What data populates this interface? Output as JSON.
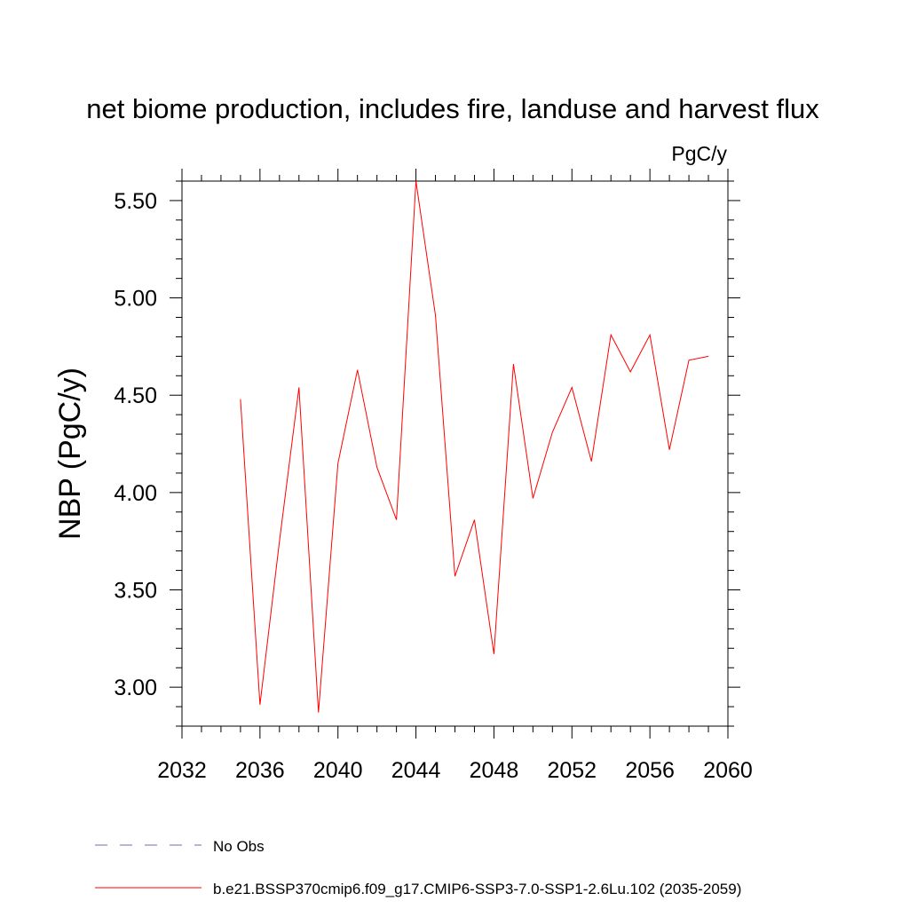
{
  "chart_data": {
    "type": "line",
    "title": "net biome production, includes fire, landuse and harvest flux",
    "units": "PgC/y",
    "ylabel": "NBP  (PgC/y)",
    "xlabel": "",
    "xlim": [
      2032,
      2060
    ],
    "ylim": [
      2.8,
      5.6
    ],
    "x_ticks": [
      2032,
      2036,
      2040,
      2044,
      2048,
      2052,
      2056,
      2060
    ],
    "x_tick_labels": [
      "2032",
      "2036",
      "2040",
      "2044",
      "2048",
      "2052",
      "2056",
      "2060"
    ],
    "y_ticks": [
      3.0,
      3.5,
      4.0,
      4.5,
      5.0,
      5.5
    ],
    "y_tick_labels": [
      "3.00",
      "3.50",
      "4.00",
      "4.50",
      "5.00",
      "5.50"
    ],
    "grid": false,
    "legend_position": "bottom",
    "series": [
      {
        "name": "b.e21.BSSP370cmip6.f09_g17.CMIP6-SSP3-7.0-SSP1-2.6Lu.102 (2035-2059)",
        "color": "#ff0000",
        "dash": "solid",
        "x": [
          2035,
          2036,
          2037,
          2038,
          2039,
          2040,
          2041,
          2042,
          2043,
          2044,
          2045,
          2046,
          2047,
          2048,
          2049,
          2050,
          2051,
          2052,
          2053,
          2054,
          2055,
          2056,
          2057,
          2058,
          2059
        ],
        "values": [
          4.48,
          2.91,
          3.75,
          4.54,
          2.87,
          4.15,
          4.63,
          4.13,
          3.86,
          5.6,
          4.91,
          3.57,
          3.86,
          3.17,
          4.66,
          3.97,
          4.31,
          4.54,
          4.16,
          4.81,
          4.62,
          4.81,
          4.22,
          4.68,
          4.7
        ]
      }
    ],
    "legend": [
      {
        "label": "No Obs",
        "color": "#7766aa",
        "dash": "dashed"
      },
      {
        "label": "b.e21.BSSP370cmip6.f09_g17.CMIP6-SSP3-7.0-SSP1-2.6Lu.102 (2035-2059)",
        "color": "#ff0000",
        "dash": "solid"
      }
    ]
  }
}
